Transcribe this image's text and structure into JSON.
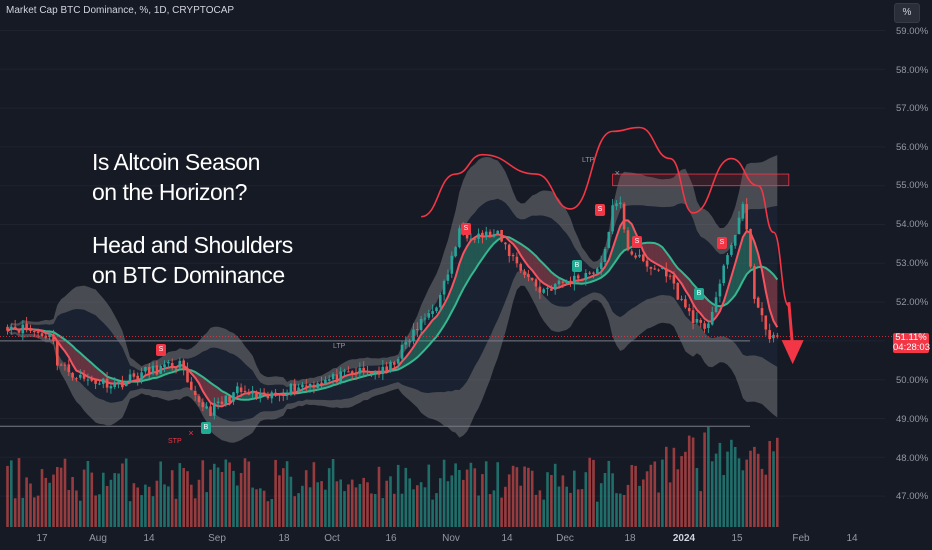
{
  "header": {
    "title": "Market Cap BTC Dominance, %, 1D, CRYPTOCAP",
    "currency_button": "%"
  },
  "annotation": {
    "line1": "Is Altcoin Season",
    "line2": "on the Horizon?",
    "line3": "Head and Shoulders",
    "line4": "on BTC Dominance"
  },
  "price_label": {
    "value": "51.11%",
    "countdown": "04:28:03"
  },
  "signals": {
    "sell": "S",
    "buy": "B",
    "stp": "STP",
    "ltp": "LTP"
  },
  "colors": {
    "background": "#161a25",
    "up": "#26a69a",
    "down": "#ef5350",
    "band": "#bdbdbd",
    "ribbon_fast": "#f7525f",
    "ribbon_slow": "#35b890",
    "head_shoulders": "#f23645",
    "price_line": "#f23645"
  },
  "chart_data": {
    "type": "candlestick",
    "title": "Market Cap BTC Dominance, %, 1D, CRYPTOCAP",
    "y_unit": "%",
    "y_range": [
      46.6,
      59.3
    ],
    "y_ticks": [
      "59.00%",
      "58.00%",
      "57.00%",
      "56.00%",
      "55.00%",
      "54.00%",
      "53.00%",
      "52.00%",
      "51.00%",
      "50.00%",
      "49.00%",
      "48.00%",
      "47.00%"
    ],
    "x_ticks": [
      "17",
      "Aug",
      "14",
      "Sep",
      "18",
      "Oct",
      "16",
      "Nov",
      "14",
      "Dec",
      "18",
      "2024",
      "15",
      "Feb",
      "14"
    ],
    "last_price": 51.11,
    "close_waypoints": [
      {
        "date": "2023-06-30",
        "value": 51.4
      },
      {
        "date": "2023-07-05",
        "value": 51.3
      },
      {
        "date": "2023-07-12",
        "value": 51.1
      },
      {
        "date": "2023-07-13",
        "value": 50.4
      },
      {
        "date": "2023-07-20",
        "value": 50.0
      },
      {
        "date": "2023-07-29",
        "value": 49.9
      },
      {
        "date": "2023-08-05",
        "value": 50.2
      },
      {
        "date": "2023-08-14",
        "value": 50.4
      },
      {
        "date": "2023-08-17",
        "value": 49.6
      },
      {
        "date": "2023-08-22",
        "value": 49.2
      },
      {
        "date": "2023-08-29",
        "value": 49.7
      },
      {
        "date": "2023-09-05",
        "value": 49.5
      },
      {
        "date": "2023-09-12",
        "value": 49.8
      },
      {
        "date": "2023-09-22",
        "value": 50.0
      },
      {
        "date": "2023-09-30",
        "value": 50.2
      },
      {
        "date": "2023-10-07",
        "value": 50.2
      },
      {
        "date": "2023-10-14",
        "value": 51.2
      },
      {
        "date": "2023-10-21",
        "value": 52.1
      },
      {
        "date": "2023-10-26",
        "value": 53.8
      },
      {
        "date": "2023-11-05",
        "value": 53.7
      },
      {
        "date": "2023-11-10",
        "value": 53.0
      },
      {
        "date": "2023-11-16",
        "value": 52.3
      },
      {
        "date": "2023-11-25",
        "value": 52.6
      },
      {
        "date": "2023-12-02",
        "value": 52.9
      },
      {
        "date": "2023-12-05",
        "value": 54.4
      },
      {
        "date": "2023-12-07",
        "value": 54.5
      },
      {
        "date": "2023-12-09",
        "value": 53.4
      },
      {
        "date": "2023-12-14",
        "value": 52.9
      },
      {
        "date": "2023-12-19",
        "value": 52.8
      },
      {
        "date": "2023-12-23",
        "value": 52.0
      },
      {
        "date": "2023-12-29",
        "value": 51.2
      },
      {
        "date": "2024-01-03",
        "value": 52.8
      },
      {
        "date": "2024-01-08",
        "value": 54.5
      },
      {
        "date": "2024-01-11",
        "value": 52.2
      },
      {
        "date": "2024-01-14",
        "value": 51.2
      },
      {
        "date": "2024-01-17",
        "value": 51.1
      }
    ],
    "resistance_zone": [
      55.0,
      55.3
    ],
    "support_levels": [
      48.8,
      51.0
    ],
    "head_shoulders_path": [
      {
        "date": "2023-10-16",
        "value": 54.2
      },
      {
        "date": "2023-10-25",
        "value": 55.3
      },
      {
        "date": "2023-11-01",
        "value": 55.8
      },
      {
        "date": "2023-11-15",
        "value": 55.3
      },
      {
        "date": "2023-11-24",
        "value": 54.4
      },
      {
        "date": "2023-12-05",
        "value": 56.4
      },
      {
        "date": "2023-12-12",
        "value": 56.5
      },
      {
        "date": "2023-12-20",
        "value": 55.7
      },
      {
        "date": "2023-12-26",
        "value": 54.3
      },
      {
        "date": "2024-01-05",
        "value": 55.7
      },
      {
        "date": "2024-01-12",
        "value": 55.0
      },
      {
        "date": "2024-01-16",
        "value": 53.8
      },
      {
        "date": "2024-01-20",
        "value": 51.9
      }
    ],
    "projection_arrow": {
      "from": {
        "date": "2024-01-20",
        "value": 52.0
      },
      "to": {
        "date": "2024-01-21",
        "value": 50.4
      }
    }
  }
}
